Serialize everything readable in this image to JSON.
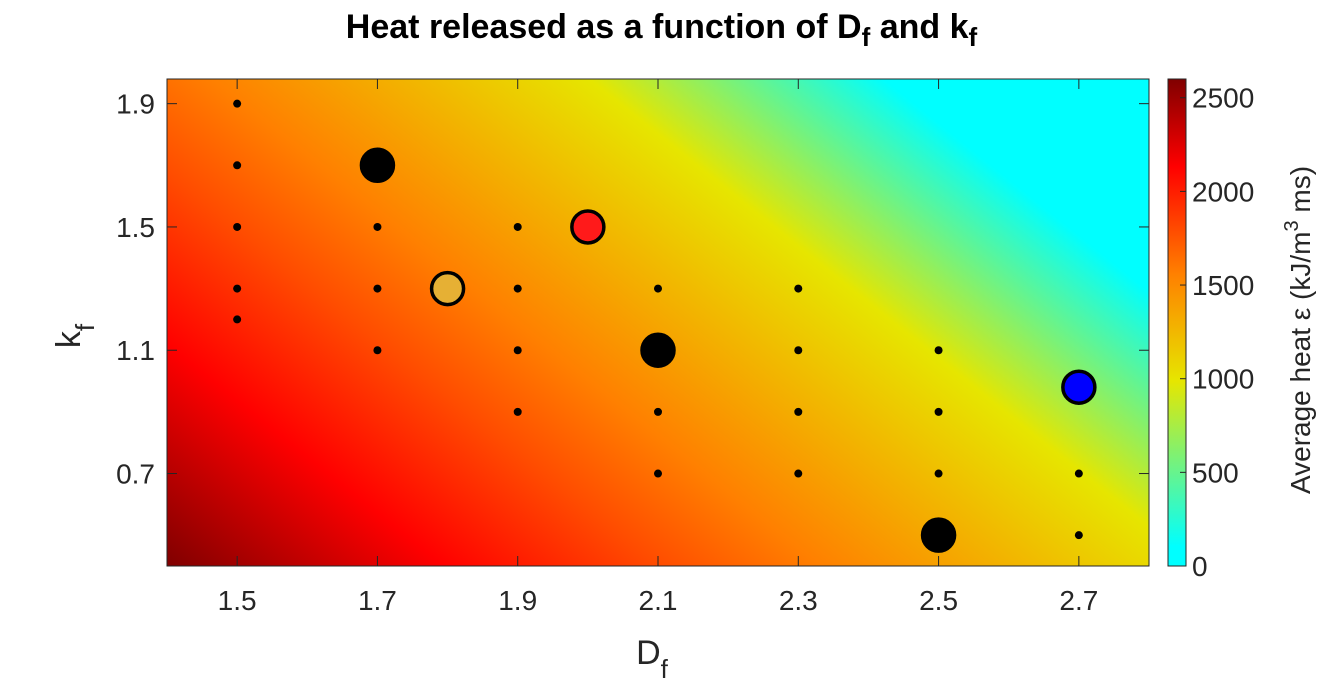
{
  "chart_data": {
    "type": "heatmap",
    "title": {
      "main": "Heat released as a function of D",
      "sub1": "f",
      "mid": " and k",
      "sub2": "f"
    },
    "xlabel": {
      "main": "D",
      "sub": "f"
    },
    "ylabel": {
      "main": "k",
      "sub": "f"
    },
    "xlim": [
      1.4,
      2.8
    ],
    "ylim": [
      0.4,
      1.98
    ],
    "xticks": [
      1.5,
      1.7,
      1.9,
      2.1,
      2.3,
      2.5,
      2.7
    ],
    "xtick_labels": [
      "1.5",
      "1.7",
      "1.9",
      "2.1",
      "2.3",
      "2.5",
      "2.7"
    ],
    "yticks": [
      0.7,
      1.1,
      1.5,
      1.9
    ],
    "ytick_labels": [
      "0.7",
      "1.1",
      "1.5",
      "1.9"
    ],
    "colorbar": {
      "label": "Average heat ε (kJ/m",
      "label_sup": "3",
      "label_end": " ms)",
      "range": [
        0,
        2600
      ],
      "ticks": [
        0,
        500,
        1000,
        1500,
        2000,
        2500
      ],
      "tick_labels": [
        "0",
        "500",
        "1000",
        "1500",
        "2000",
        "2500"
      ],
      "colormap": [
        "#00ffff",
        "#e6e600",
        "#ff8000",
        "#ff0000",
        "#800000"
      ]
    },
    "heat_field": {
      "corner_bottom_left": 2600,
      "yellow_band": 1000,
      "cyan_region": 100
    },
    "small_points": [
      {
        "x": 1.5,
        "y": 1.9
      },
      {
        "x": 1.5,
        "y": 1.7
      },
      {
        "x": 1.5,
        "y": 1.5
      },
      {
        "x": 1.5,
        "y": 1.3
      },
      {
        "x": 1.5,
        "y": 1.2
      },
      {
        "x": 1.7,
        "y": 1.5
      },
      {
        "x": 1.7,
        "y": 1.3
      },
      {
        "x": 1.7,
        "y": 1.1
      },
      {
        "x": 1.9,
        "y": 1.5
      },
      {
        "x": 1.9,
        "y": 1.3
      },
      {
        "x": 1.9,
        "y": 1.1
      },
      {
        "x": 1.9,
        "y": 0.9
      },
      {
        "x": 2.1,
        "y": 1.3
      },
      {
        "x": 2.1,
        "y": 0.9
      },
      {
        "x": 2.1,
        "y": 0.7
      },
      {
        "x": 2.3,
        "y": 1.3
      },
      {
        "x": 2.3,
        "y": 1.1
      },
      {
        "x": 2.3,
        "y": 0.9
      },
      {
        "x": 2.3,
        "y": 0.7
      },
      {
        "x": 2.5,
        "y": 1.1
      },
      {
        "x": 2.5,
        "y": 0.9
      },
      {
        "x": 2.5,
        "y": 0.7
      },
      {
        "x": 2.7,
        "y": 0.7
      },
      {
        "x": 2.7,
        "y": 0.5
      }
    ],
    "large_points": [
      {
        "x": 1.7,
        "y": 1.7,
        "color": "#000000"
      },
      {
        "x": 1.8,
        "y": 1.3,
        "color": "#e6b034"
      },
      {
        "x": 2.0,
        "y": 1.5,
        "color": "#ff1a1a"
      },
      {
        "x": 2.1,
        "y": 1.1,
        "color": "#000000"
      },
      {
        "x": 2.5,
        "y": 0.5,
        "color": "#000000"
      },
      {
        "x": 2.7,
        "y": 0.98,
        "color": "#0000ff"
      }
    ]
  }
}
